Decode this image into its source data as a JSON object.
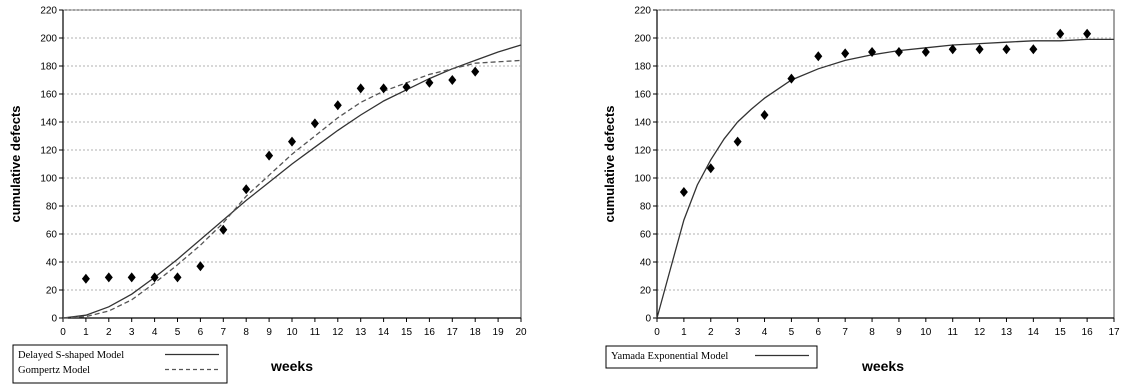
{
  "chart_data": [
    {
      "type": "scatter",
      "xlabel": "weeks",
      "ylabel": "cumulative defects",
      "xlim": [
        0,
        20
      ],
      "ylim": [
        0,
        220
      ],
      "xticks": [
        0,
        1,
        2,
        3,
        4,
        5,
        6,
        7,
        8,
        9,
        10,
        11,
        12,
        13,
        14,
        15,
        16,
        17,
        18,
        19,
        20
      ],
      "yticks": [
        0,
        20,
        40,
        60,
        80,
        100,
        120,
        140,
        160,
        180,
        200,
        220
      ],
      "grid": "horizontal dashed",
      "legend_position": "bottom-left, below plot",
      "points": {
        "x": [
          1,
          2,
          3,
          4,
          5,
          6,
          7,
          8,
          9,
          10,
          11,
          12,
          13,
          14,
          15,
          16,
          17,
          18
        ],
        "y": [
          28,
          29,
          29,
          29,
          29,
          37,
          63,
          92,
          116,
          126,
          139,
          152,
          164,
          164,
          165,
          168,
          170,
          176
        ]
      },
      "series": [
        {
          "name": "Delayed S-shaped Model",
          "style": "solid",
          "x": [
            0,
            1,
            2,
            3,
            4,
            5,
            6,
            7,
            8,
            9,
            10,
            11,
            12,
            13,
            14,
            15,
            16,
            17,
            18,
            19,
            20
          ],
          "y": [
            0,
            2,
            8,
            17,
            29,
            42,
            56,
            70,
            84,
            97,
            110,
            122,
            134,
            145,
            155,
            163,
            171,
            178,
            184,
            190,
            195
          ]
        },
        {
          "name": "Gompertz Model",
          "style": "dashed",
          "x": [
            0,
            1,
            2,
            3,
            4,
            5,
            6,
            7,
            8,
            9,
            10,
            11,
            12,
            13,
            14,
            15,
            16,
            17,
            18,
            19,
            20
          ],
          "y": [
            0,
            1,
            5,
            13,
            25,
            38,
            52,
            68,
            87,
            102,
            117,
            130,
            143,
            154,
            162,
            168,
            174,
            178,
            182,
            183,
            184
          ]
        }
      ]
    },
    {
      "type": "scatter",
      "xlabel": "weeks",
      "ylabel": "cumulative defects",
      "xlim": [
        0,
        17
      ],
      "ylim": [
        0,
        220
      ],
      "xticks": [
        0,
        1,
        2,
        3,
        4,
        5,
        6,
        7,
        8,
        9,
        10,
        11,
        12,
        13,
        14,
        15,
        16,
        17
      ],
      "yticks": [
        0,
        20,
        40,
        60,
        80,
        100,
        120,
        140,
        160,
        180,
        200,
        220
      ],
      "grid": "horizontal dashed",
      "legend_position": "bottom-left, below plot",
      "points": {
        "x": [
          1,
          2,
          3,
          4,
          5,
          6,
          7,
          8,
          9,
          10,
          11,
          12,
          13,
          14,
          15,
          16
        ],
        "y": [
          90,
          107,
          126,
          145,
          171,
          187,
          189,
          190,
          190,
          190,
          192,
          192,
          192,
          192,
          203,
          203
        ]
      },
      "series": [
        {
          "name": "Yamada Exponential Model",
          "style": "solid",
          "x": [
            0,
            0.5,
            1,
            1.5,
            2,
            2.5,
            3,
            3.5,
            4,
            5,
            6,
            7,
            8,
            9,
            10,
            11,
            12,
            13,
            14,
            15,
            16,
            17
          ],
          "y": [
            0,
            35,
            70,
            95,
            113,
            128,
            140,
            149,
            157,
            170,
            178,
            184,
            188,
            191,
            193,
            195,
            196,
            197,
            198,
            198,
            199,
            199
          ]
        }
      ]
    }
  ]
}
